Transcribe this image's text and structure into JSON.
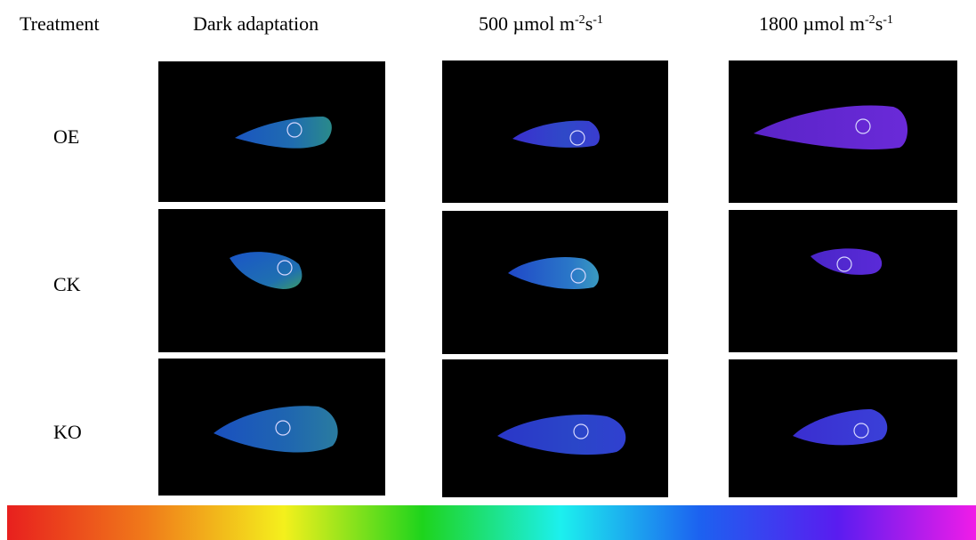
{
  "header": {
    "treatment": "Treatment",
    "col1": "Dark adaptation",
    "col2_base": "500 µmol m",
    "col2_exp1": "-2",
    "col2_mid": "s",
    "col2_exp2": "-1",
    "col3_base": "1800 µmol m",
    "col3_exp1": "-2",
    "col3_mid": "s",
    "col3_exp2": "-1"
  },
  "rows": {
    "r1": "OE",
    "r2": "CK",
    "r3": "KO"
  },
  "colors": {
    "background": "#ffffff",
    "panel": "#000000",
    "leaf_blue_green": "#1f5fb8",
    "leaf_blue": "#2a3fd0",
    "leaf_violet": "#5a2ad8",
    "marker": "#d8d8ff"
  },
  "scale_colors": [
    "#e8201e",
    "#f07a1a",
    "#f4f01c",
    "#1ed41c",
    "#1cf0ee",
    "#1c62f0",
    "#5a1cf0",
    "#f01ce8"
  ]
}
